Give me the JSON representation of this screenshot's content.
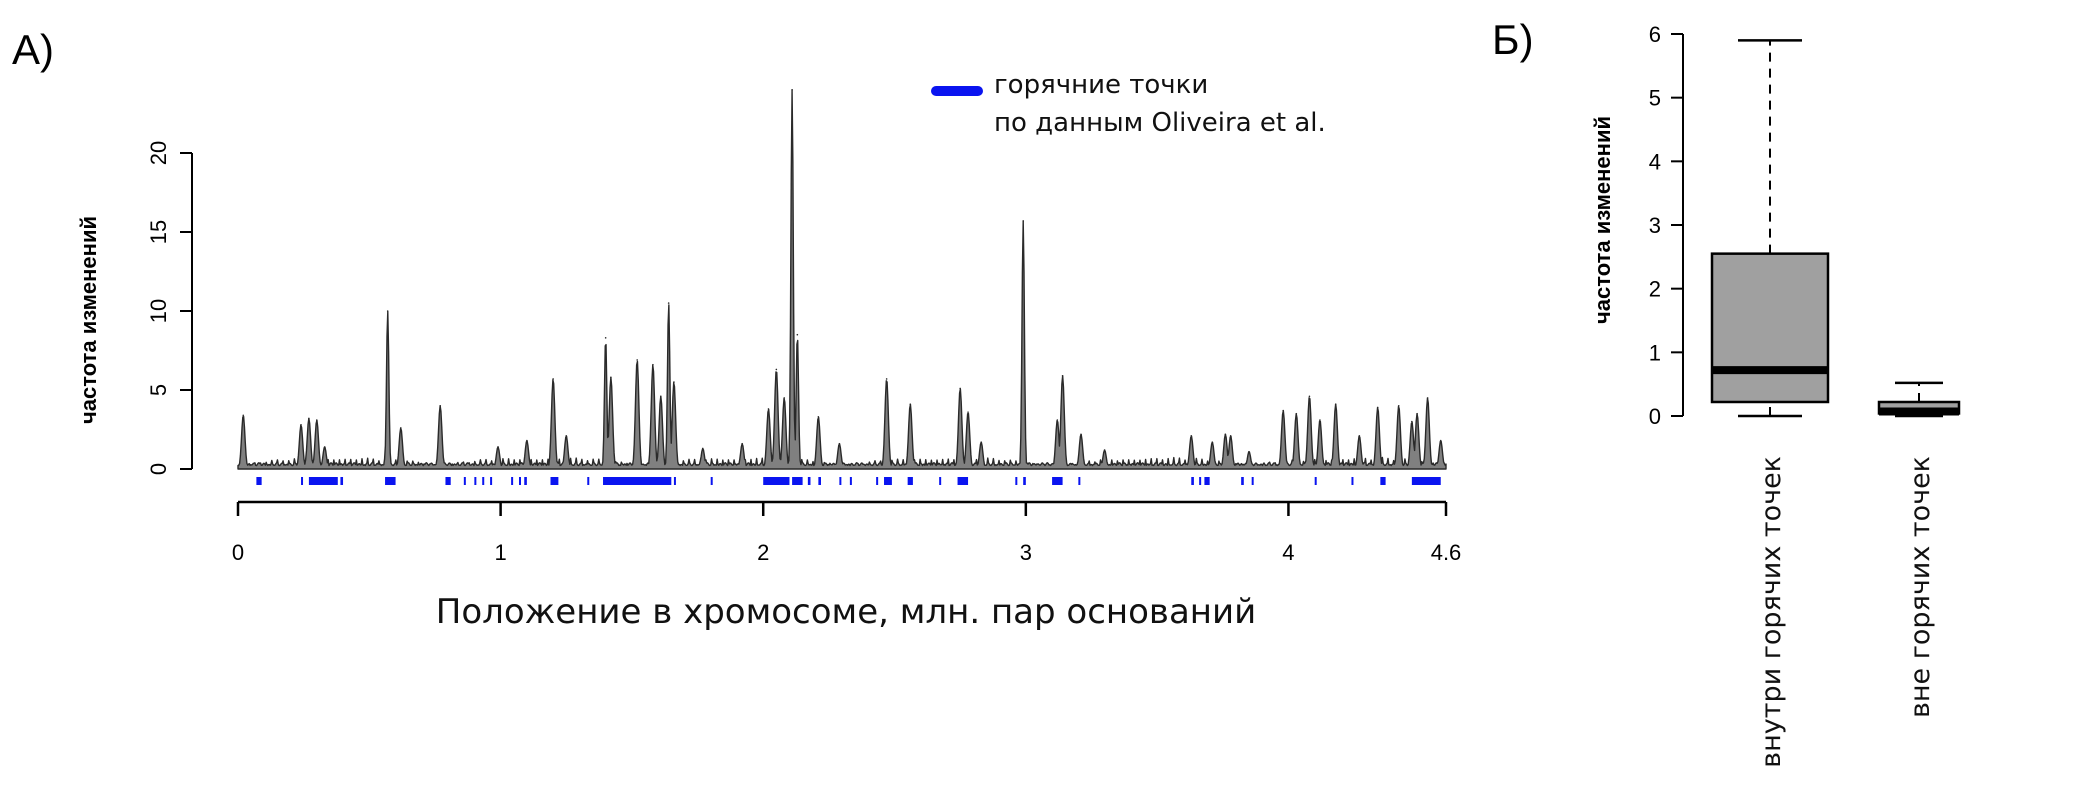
{
  "panels": {
    "a_label": "А)",
    "b_label": "Б)"
  },
  "colors": {
    "area_fill": "#808080",
    "area_stroke": "#2a2a2a",
    "hotspot": "#0a14f0",
    "box_fill": "#a0a0a0"
  },
  "chart_data": [
    {
      "type": "area",
      "title": "",
      "xlabel": "Положение в хромосоме, млн. пар оснований",
      "ylabel": "частота изменений",
      "xlim": [
        0,
        4.6
      ],
      "ylim": [
        0,
        20
      ],
      "x_ticks": [
        0,
        1,
        2,
        3,
        4,
        4.6
      ],
      "x_tick_labels": [
        "0",
        "1",
        "2",
        "3",
        "4",
        "4.6"
      ],
      "y_ticks": [
        0,
        5,
        10,
        15,
        20
      ],
      "y_tick_labels": [
        "0",
        "5",
        "10",
        "15",
        "20"
      ],
      "grid": false,
      "legend": {
        "placement": "top-right",
        "line1": "горячние точки",
        "line2": "по данным Oliveira et al."
      },
      "peaks": [
        [
          0.02,
          3.4
        ],
        [
          0.24,
          2.8
        ],
        [
          0.27,
          3.2
        ],
        [
          0.3,
          3.1
        ],
        [
          0.33,
          1.4
        ],
        [
          0.57,
          10.0
        ],
        [
          0.62,
          2.6
        ],
        [
          0.77,
          4.0
        ],
        [
          0.99,
          1.4
        ],
        [
          1.1,
          1.8
        ],
        [
          1.2,
          5.7
        ],
        [
          1.25,
          2.1
        ],
        [
          1.4,
          8.3
        ],
        [
          1.42,
          5.8
        ],
        [
          1.52,
          6.9
        ],
        [
          1.58,
          6.6
        ],
        [
          1.61,
          4.6
        ],
        [
          1.64,
          10.5
        ],
        [
          1.66,
          5.5
        ],
        [
          1.77,
          1.3
        ],
        [
          1.92,
          1.6
        ],
        [
          2.02,
          3.8
        ],
        [
          2.05,
          6.3
        ],
        [
          2.08,
          4.5
        ],
        [
          2.11,
          24.0
        ],
        [
          2.13,
          8.5
        ],
        [
          2.21,
          3.3
        ],
        [
          2.29,
          1.6
        ],
        [
          2.47,
          5.7
        ],
        [
          2.56,
          4.1
        ],
        [
          2.75,
          5.1
        ],
        [
          2.78,
          3.6
        ],
        [
          2.83,
          1.7
        ],
        [
          2.99,
          15.7
        ],
        [
          3.12,
          3.1
        ],
        [
          3.14,
          5.9
        ],
        [
          3.21,
          2.2
        ],
        [
          3.3,
          1.2
        ],
        [
          3.63,
          2.1
        ],
        [
          3.71,
          1.7
        ],
        [
          3.76,
          2.2
        ],
        [
          3.78,
          2.1
        ],
        [
          3.85,
          1.1
        ],
        [
          3.98,
          3.7
        ],
        [
          4.03,
          3.5
        ],
        [
          4.08,
          4.6
        ],
        [
          4.12,
          3.1
        ],
        [
          4.18,
          4.1
        ],
        [
          4.27,
          2.1
        ],
        [
          4.34,
          3.9
        ],
        [
          4.42,
          4.0
        ],
        [
          4.47,
          3.0
        ],
        [
          4.49,
          3.5
        ],
        [
          4.53,
          4.5
        ],
        [
          4.58,
          1.8
        ]
      ],
      "hotspots": [
        [
          0.07,
          0.09
        ],
        [
          0.24,
          0.245
        ],
        [
          0.27,
          0.38
        ],
        [
          0.39,
          0.4
        ],
        [
          0.56,
          0.6
        ],
        [
          0.79,
          0.81
        ],
        [
          0.86,
          0.865
        ],
        [
          0.9,
          0.905
        ],
        [
          0.93,
          0.935
        ],
        [
          0.96,
          0.965
        ],
        [
          1.04,
          1.045
        ],
        [
          1.07,
          1.075
        ],
        [
          1.09,
          1.1
        ],
        [
          1.19,
          1.22
        ],
        [
          1.33,
          1.335
        ],
        [
          1.39,
          1.65
        ],
        [
          1.66,
          1.665
        ],
        [
          1.8,
          1.805
        ],
        [
          2.0,
          2.1
        ],
        [
          2.11,
          2.15
        ],
        [
          2.17,
          2.18
        ],
        [
          2.21,
          2.22
        ],
        [
          2.29,
          2.295
        ],
        [
          2.33,
          2.335
        ],
        [
          2.43,
          2.435
        ],
        [
          2.46,
          2.49
        ],
        [
          2.55,
          2.57
        ],
        [
          2.67,
          2.675
        ],
        [
          2.74,
          2.78
        ],
        [
          2.96,
          2.965
        ],
        [
          2.99,
          3.0
        ],
        [
          3.1,
          3.14
        ],
        [
          3.2,
          3.205
        ],
        [
          3.63,
          3.64
        ],
        [
          3.66,
          3.665
        ],
        [
          3.68,
          3.7
        ],
        [
          3.82,
          3.83
        ],
        [
          3.86,
          3.865
        ],
        [
          4.1,
          4.105
        ],
        [
          4.24,
          4.245
        ],
        [
          4.35,
          4.37
        ],
        [
          4.47,
          4.58
        ]
      ]
    },
    {
      "type": "box",
      "title": "",
      "ylabel": "частота изменений",
      "ylim": [
        0,
        6
      ],
      "y_ticks": [
        0,
        1,
        2,
        3,
        4,
        5,
        6
      ],
      "y_tick_labels": [
        "0",
        "1",
        "2",
        "3",
        "4",
        "5",
        "6"
      ],
      "categories": [
        "внутри горячих точек",
        "вне горячих точек"
      ],
      "boxes": [
        {
          "min": 0.0,
          "q1": 0.22,
          "median": 0.72,
          "q3": 2.55,
          "max": 5.9
        },
        {
          "min": 0.0,
          "q1": 0.04,
          "median": 0.07,
          "q3": 0.22,
          "max": 0.52
        }
      ]
    }
  ]
}
